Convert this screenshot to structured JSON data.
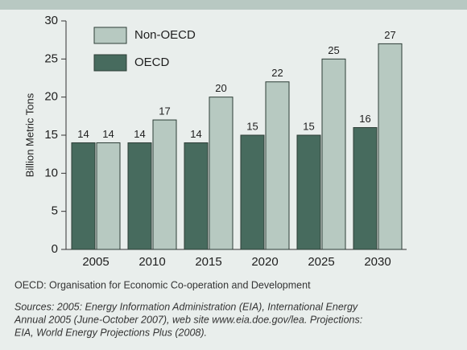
{
  "chart_data": {
    "type": "bar",
    "y_label": "Billion Metric Tons",
    "categories": [
      "2005",
      "2010",
      "2015",
      "2020",
      "2025",
      "2030"
    ],
    "series": [
      {
        "name": "OECD",
        "color": "#476b5e",
        "values": [
          14,
          14,
          14,
          15,
          15,
          16
        ]
      },
      {
        "name": "Non-OECD",
        "color": "#b7c9c1",
        "values": [
          14,
          17,
          20,
          22,
          25,
          27
        ]
      }
    ],
    "ylim": [
      0,
      30
    ],
    "yticks": [
      0,
      5,
      10,
      15,
      20,
      25,
      30
    ],
    "grid": false,
    "note": "OECD: Organisation for Economic Co-operation and Development",
    "sources": [
      "Sources: 2005: Energy Information Administration (EIA), International Energy",
      "Annual 2005 (June-October 2007), web site www.eia.doe.gov/lea. Projections:",
      "EIA, World Energy Projections Plus (2008)."
    ]
  }
}
